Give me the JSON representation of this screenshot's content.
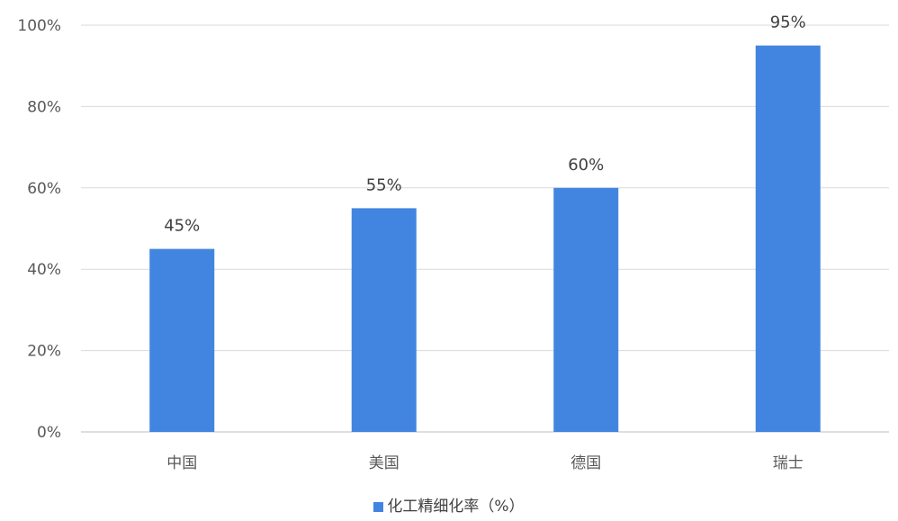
{
  "chart_data": {
    "type": "bar",
    "categories": [
      "中国",
      "美国",
      "德国",
      "瑞士"
    ],
    "series": [
      {
        "name": "化工精细化率（%）",
        "values": [
          45,
          55,
          60,
          95
        ],
        "data_labels": [
          "45%",
          "55%",
          "60%",
          "95%"
        ],
        "color": "#4285e0"
      }
    ],
    "y_ticks": [
      "0%",
      "20%",
      "40%",
      "60%",
      "80%",
      "100%"
    ],
    "ylim": [
      0,
      100
    ],
    "y_tick_step": 20,
    "grid": true,
    "legend_position": "bottom"
  },
  "colors": {
    "bar": "#4285e0",
    "grid": "#d9d9d9",
    "axis": "#bfbfbf"
  }
}
